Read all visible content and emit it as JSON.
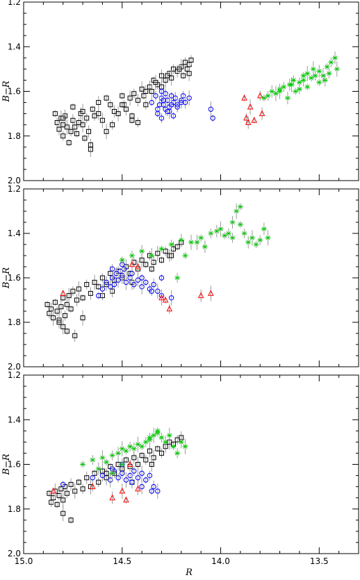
{
  "figure_title": "",
  "colors": {
    "black_series": "#000000",
    "blue_series": "#0000ff",
    "red_series": "#ff0000",
    "green_series": "#00c800",
    "error_bars": "#9a9a9a"
  },
  "chart_data": [
    {
      "type": "scatter",
      "panel": 1,
      "title": "",
      "xlabel": "",
      "ylabel": "B−R",
      "xlim": [
        15.0,
        13.3
      ],
      "ylim": [
        2.0,
        1.2
      ],
      "x_inverted": true,
      "y_inverted": true,
      "xticks": [
        15.0,
        14.5,
        14.0,
        13.5
      ],
      "xtick_labels": [],
      "yticks": [
        1.2,
        1.4,
        1.6,
        1.8,
        2.0
      ],
      "ytick_labels": [
        "1.2",
        "1.4",
        "1.6",
        "1.8",
        "2.0"
      ],
      "grid": false,
      "series": [
        {
          "marker": "square",
          "color": "#000000",
          "error_bars": true,
          "x": [
            14.84,
            14.83,
            14.82,
            14.81,
            14.8,
            14.8,
            14.79,
            14.78,
            14.77,
            14.76,
            14.75,
            14.74,
            14.73,
            14.72,
            14.71,
            14.7,
            14.69,
            14.68,
            14.67,
            14.66,
            14.65,
            14.64,
            14.62,
            14.6,
            14.58,
            14.56,
            14.54,
            14.52,
            14.5,
            14.49,
            14.48,
            14.46,
            14.45,
            14.44,
            14.42,
            14.4,
            14.39,
            14.38,
            14.36,
            14.35,
            14.34,
            14.32,
            14.3,
            14.28,
            14.26,
            14.24,
            14.22,
            14.2,
            14.19,
            14.18,
            14.17,
            14.16,
            14.16,
            14.15,
            14.3,
            14.25,
            14.45,
            14.55,
            14.62,
            14.7,
            14.75,
            14.8,
            14.66,
            14.58,
            14.5,
            14.42,
            14.38,
            14.33,
            14.27,
            14.21
          ],
          "y": [
            1.7,
            1.74,
            1.77,
            1.72,
            1.75,
            1.8,
            1.71,
            1.76,
            1.83,
            1.78,
            1.73,
            1.76,
            1.79,
            1.74,
            1.7,
            1.75,
            1.81,
            1.72,
            1.78,
            1.86,
            1.68,
            1.71,
            1.65,
            1.73,
            1.63,
            1.66,
            1.69,
            1.7,
            1.62,
            1.66,
            1.68,
            1.63,
            1.71,
            1.61,
            1.64,
            1.59,
            1.62,
            1.66,
            1.58,
            1.6,
            1.55,
            1.57,
            1.53,
            1.55,
            1.52,
            1.5,
            1.51,
            1.49,
            1.53,
            1.47,
            1.5,
            1.52,
            1.48,
            1.46,
            1.58,
            1.54,
            1.73,
            1.75,
            1.7,
            1.69,
            1.67,
            1.72,
            1.84,
            1.78,
            1.66,
            1.74,
            1.6,
            1.56,
            1.53,
            1.5
          ]
        },
        {
          "marker": "circle",
          "color": "#0000ff",
          "error_bars": true,
          "x": [
            14.35,
            14.33,
            14.32,
            14.3,
            14.29,
            14.28,
            14.27,
            14.26,
            14.25,
            14.24,
            14.23,
            14.22,
            14.2,
            14.19,
            14.18,
            14.16,
            14.32,
            14.3,
            14.28,
            14.26,
            14.24,
            14.22,
            14.2,
            14.31,
            14.29,
            14.27,
            14.25,
            14.05,
            14.04,
            14.3
          ],
          "y": [
            1.65,
            1.62,
            1.68,
            1.63,
            1.66,
            1.61,
            1.64,
            1.67,
            1.62,
            1.65,
            1.63,
            1.66,
            1.64,
            1.62,
            1.65,
            1.63,
            1.7,
            1.72,
            1.68,
            1.69,
            1.71,
            1.67,
            1.65,
            1.66,
            1.64,
            1.69,
            1.66,
            1.68,
            1.72,
            1.6
          ]
        },
        {
          "marker": "triangle",
          "color": "#ff0000",
          "error_bars": true,
          "x": [
            13.88,
            13.87,
            13.86,
            13.85,
            13.83,
            13.8,
            13.79
          ],
          "y": [
            1.63,
            1.72,
            1.74,
            1.67,
            1.73,
            1.62,
            1.7
          ]
        },
        {
          "marker": "asterisk",
          "color": "#00c800",
          "error_bars": true,
          "x": [
            13.78,
            13.76,
            13.74,
            13.72,
            13.7,
            13.68,
            13.66,
            13.64,
            13.62,
            13.6,
            13.58,
            13.56,
            13.54,
            13.52,
            13.5,
            13.48,
            13.46,
            13.44,
            13.42,
            13.41,
            13.56,
            13.6,
            13.65,
            13.7,
            13.5,
            13.45,
            13.47,
            13.53,
            13.58,
            13.63
          ],
          "y": [
            1.63,
            1.62,
            1.6,
            1.61,
            1.59,
            1.58,
            1.63,
            1.57,
            1.6,
            1.56,
            1.55,
            1.52,
            1.54,
            1.53,
            1.51,
            1.53,
            1.49,
            1.47,
            1.45,
            1.5,
            1.58,
            1.59,
            1.57,
            1.6,
            1.56,
            1.52,
            1.55,
            1.5,
            1.53,
            1.55
          ]
        }
      ]
    },
    {
      "type": "scatter",
      "panel": 2,
      "title": "",
      "xlabel": "",
      "ylabel": "B−R",
      "xlim": [
        15.0,
        13.3
      ],
      "ylim": [
        2.0,
        1.2
      ],
      "x_inverted": true,
      "y_inverted": true,
      "xticks": [
        15.0,
        14.5,
        14.0,
        13.5
      ],
      "xtick_labels": [],
      "yticks": [
        1.2,
        1.4,
        1.6,
        1.8,
        2.0
      ],
      "ytick_labels": [
        "1.2",
        "1.4",
        "1.6",
        "1.8",
        "2.0"
      ],
      "grid": false,
      "series": [
        {
          "marker": "square",
          "color": "#000000",
          "error_bars": true,
          "x": [
            14.88,
            14.87,
            14.86,
            14.85,
            14.84,
            14.83,
            14.82,
            14.81,
            14.8,
            14.79,
            14.78,
            14.77,
            14.76,
            14.75,
            14.73,
            14.72,
            14.7,
            14.68,
            14.66,
            14.64,
            14.62,
            14.6,
            14.58,
            14.56,
            14.54,
            14.52,
            14.5,
            14.48,
            14.46,
            14.44,
            14.42,
            14.4,
            14.38,
            14.36,
            14.34,
            14.32,
            14.3,
            14.28,
            14.26,
            14.24,
            14.22,
            14.2,
            14.82,
            14.8,
            14.78,
            14.6,
            14.55,
            14.45,
            14.35,
            14.25,
            14.74,
            14.7
          ],
          "y": [
            1.72,
            1.76,
            1.74,
            1.78,
            1.71,
            1.75,
            1.79,
            1.73,
            1.69,
            1.77,
            1.72,
            1.68,
            1.74,
            1.66,
            1.7,
            1.65,
            1.69,
            1.63,
            1.67,
            1.62,
            1.64,
            1.6,
            1.63,
            1.58,
            1.61,
            1.57,
            1.6,
            1.55,
            1.58,
            1.53,
            1.56,
            1.52,
            1.54,
            1.5,
            1.53,
            1.49,
            1.52,
            1.48,
            1.5,
            1.47,
            1.46,
            1.44,
            1.8,
            1.82,
            1.84,
            1.68,
            1.66,
            1.62,
            1.56,
            1.5,
            1.86,
            1.78
          ]
        },
        {
          "marker": "circle",
          "color": "#0000ff",
          "error_bars": true,
          "x": [
            14.62,
            14.6,
            14.58,
            14.56,
            14.55,
            14.54,
            14.53,
            14.52,
            14.51,
            14.5,
            14.49,
            14.48,
            14.46,
            14.44,
            14.42,
            14.4,
            14.38,
            14.36,
            14.34,
            14.32,
            14.3,
            14.55,
            14.5,
            14.45,
            14.4,
            14.35,
            14.3,
            14.25
          ],
          "y": [
            1.68,
            1.65,
            1.62,
            1.64,
            1.6,
            1.63,
            1.58,
            1.61,
            1.57,
            1.59,
            1.56,
            1.62,
            1.6,
            1.63,
            1.61,
            1.64,
            1.62,
            1.65,
            1.63,
            1.66,
            1.6,
            1.56,
            1.54,
            1.58,
            1.6,
            1.66,
            1.68,
            1.69
          ]
        },
        {
          "marker": "triangle",
          "color": "#ff0000",
          "error_bars": true,
          "x": [
            14.8,
            14.45,
            14.42,
            14.3,
            14.28,
            14.26,
            14.1,
            14.05
          ],
          "y": [
            1.67,
            1.54,
            1.55,
            1.69,
            1.7,
            1.74,
            1.68,
            1.67
          ]
        },
        {
          "marker": "asterisk",
          "color": "#00c800",
          "error_bars": true,
          "x": [
            14.5,
            14.45,
            14.4,
            14.35,
            14.3,
            14.25,
            14.2,
            14.15,
            14.1,
            14.05,
            14.02,
            14.0,
            13.98,
            13.96,
            13.94,
            13.92,
            13.9,
            13.88,
            13.86,
            13.84,
            13.82,
            13.8,
            13.78,
            13.76,
            13.9,
            13.94,
            14.08,
            14.12,
            14.18,
            14.22
          ],
          "y": [
            1.52,
            1.5,
            1.48,
            1.5,
            1.47,
            1.45,
            1.43,
            1.44,
            1.42,
            1.4,
            1.39,
            1.38,
            1.41,
            1.4,
            1.35,
            1.3,
            1.36,
            1.4,
            1.44,
            1.42,
            1.45,
            1.43,
            1.38,
            1.42,
            1.28,
            1.42,
            1.46,
            1.44,
            1.5,
            1.6
          ]
        }
      ]
    },
    {
      "type": "scatter",
      "panel": 3,
      "title": "",
      "xlabel": "R",
      "ylabel": "B−R",
      "xlim": [
        15.0,
        13.3
      ],
      "ylim": [
        2.0,
        1.2
      ],
      "x_inverted": true,
      "y_inverted": true,
      "xticks": [
        15.0,
        14.5,
        14.0,
        13.5
      ],
      "xtick_labels": [
        "15.0",
        "14.5",
        "14.0",
        "13.5"
      ],
      "yticks": [
        1.2,
        1.4,
        1.6,
        1.8,
        2.0
      ],
      "ytick_labels": [
        "1.2",
        "1.4",
        "1.6",
        "1.8",
        "2.0"
      ],
      "grid": false,
      "series": [
        {
          "marker": "square",
          "color": "#000000",
          "error_bars": true,
          "x": [
            14.87,
            14.86,
            14.85,
            14.84,
            14.83,
            14.82,
            14.81,
            14.8,
            14.79,
            14.78,
            14.76,
            14.74,
            14.72,
            14.7,
            14.68,
            14.66,
            14.64,
            14.62,
            14.6,
            14.58,
            14.56,
            14.54,
            14.52,
            14.5,
            14.48,
            14.46,
            14.44,
            14.42,
            14.4,
            14.38,
            14.36,
            14.34,
            14.32,
            14.3,
            14.28,
            14.26,
            14.24,
            14.22,
            14.2,
            14.8,
            14.76,
            14.58,
            14.45,
            14.35
          ],
          "y": [
            1.73,
            1.77,
            1.75,
            1.72,
            1.78,
            1.74,
            1.71,
            1.76,
            1.7,
            1.73,
            1.69,
            1.72,
            1.68,
            1.71,
            1.66,
            1.7,
            1.64,
            1.68,
            1.63,
            1.66,
            1.61,
            1.64,
            1.6,
            1.62,
            1.58,
            1.61,
            1.57,
            1.6,
            1.56,
            1.58,
            1.54,
            1.57,
            1.53,
            1.55,
            1.52,
            1.5,
            1.51,
            1.49,
            1.48,
            1.82,
            1.85,
            1.64,
            1.68,
            1.6
          ]
        },
        {
          "marker": "circle",
          "color": "#0000ff",
          "error_bars": true,
          "x": [
            14.8,
            14.65,
            14.6,
            14.56,
            14.54,
            14.52,
            14.5,
            14.48,
            14.46,
            14.44,
            14.42,
            14.4,
            14.38,
            14.36,
            14.34,
            14.32,
            14.55,
            14.5,
            14.45,
            14.4,
            14.35
          ],
          "y": [
            1.69,
            1.66,
            1.65,
            1.67,
            1.63,
            1.66,
            1.64,
            1.67,
            1.65,
            1.63,
            1.66,
            1.64,
            1.67,
            1.65,
            1.7,
            1.72,
            1.62,
            1.6,
            1.68,
            1.7,
            1.72
          ]
        },
        {
          "marker": "triangle",
          "color": "#ff0000",
          "error_bars": true,
          "x": [
            14.85,
            14.65,
            14.55,
            14.5,
            14.48,
            14.46,
            14.42
          ],
          "y": [
            1.72,
            1.7,
            1.75,
            1.72,
            1.76,
            1.6,
            1.71
          ]
        },
        {
          "marker": "asterisk",
          "color": "#00c800",
          "error_bars": true,
          "x": [
            14.7,
            14.65,
            14.62,
            14.6,
            14.58,
            14.55,
            14.52,
            14.5,
            14.48,
            14.46,
            14.44,
            14.42,
            14.4,
            14.38,
            14.36,
            14.34,
            14.32,
            14.3,
            14.28,
            14.26,
            14.24,
            14.22,
            14.2,
            14.18,
            14.32,
            14.36,
            14.5,
            14.55
          ],
          "y": [
            1.6,
            1.58,
            1.62,
            1.57,
            1.59,
            1.56,
            1.55,
            1.53,
            1.54,
            1.52,
            1.53,
            1.51,
            1.52,
            1.5,
            1.49,
            1.47,
            1.46,
            1.48,
            1.5,
            1.47,
            1.52,
            1.55,
            1.5,
            1.52,
            1.45,
            1.48,
            1.6,
            1.64
          ]
        }
      ]
    }
  ]
}
